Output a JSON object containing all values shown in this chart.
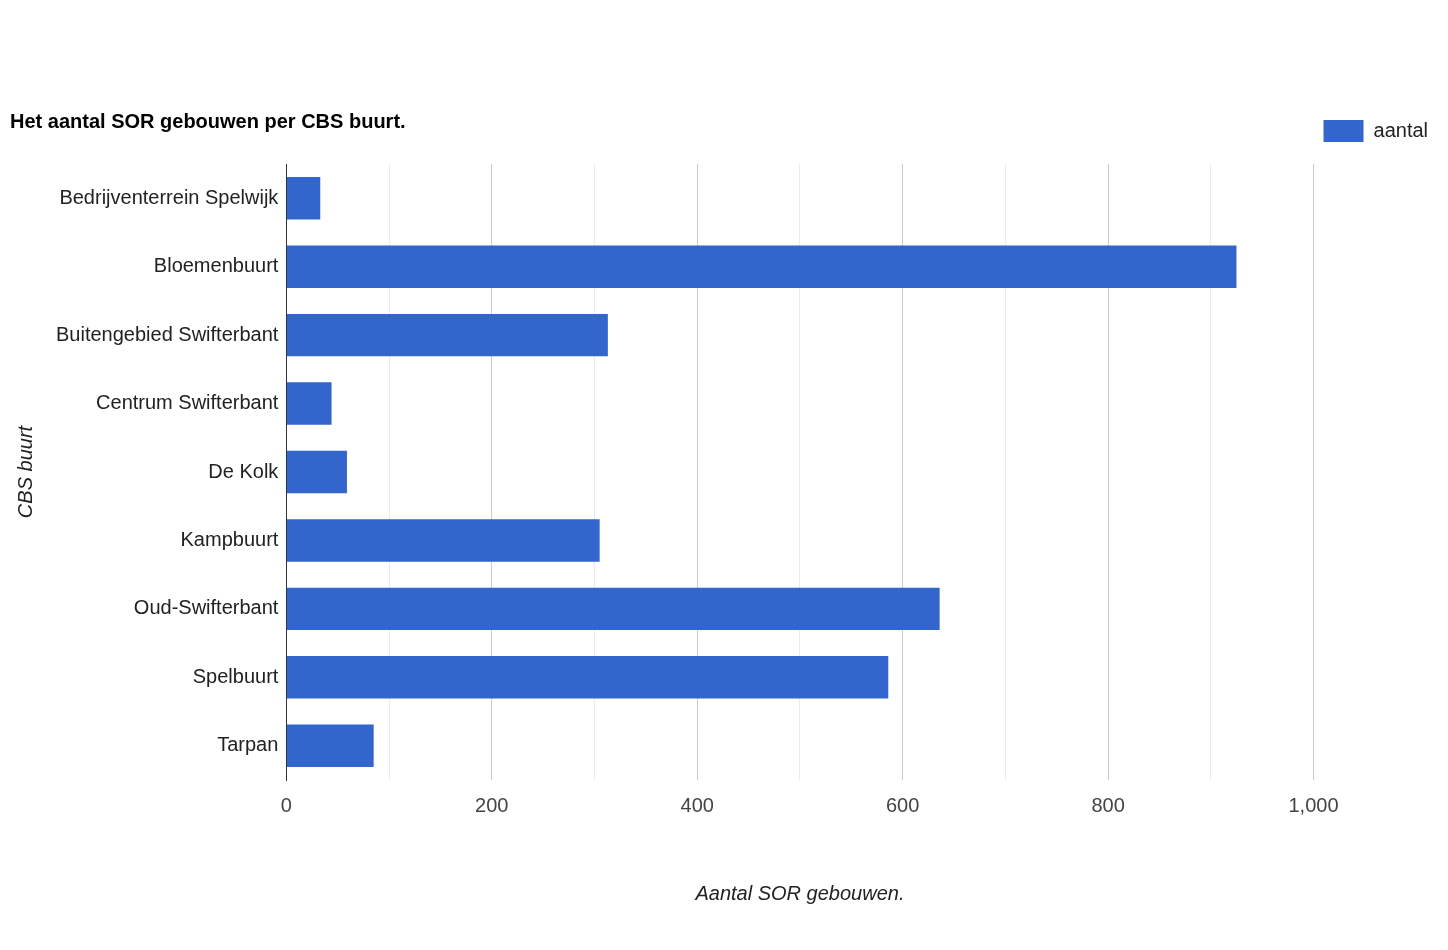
{
  "chart_data": {
    "type": "bar",
    "orientation": "horizontal",
    "title": "Het aantal SOR gebouwen per CBS buurt.",
    "xlabel": "Aantal SOR gebouwen.",
    "ylabel": "CBS buurt",
    "categories": [
      "Bedrijventerrein Spelwijk",
      "Bloemenbuurt",
      "Buitengebied Swifterbant",
      "Centrum Swifterbant",
      "De Kolk",
      "Kampbuurt",
      "Oud-Swifterbant",
      "Spelbuurt",
      "Tarpan"
    ],
    "series": [
      {
        "name": "aantal",
        "color": "#3366cc",
        "values": [
          33,
          925,
          313,
          44,
          59,
          305,
          636,
          586,
          85
        ]
      }
    ],
    "xlim": [
      0,
      1000
    ],
    "xticks": [
      0,
      {
        "value": 100,
        "label": null
      },
      200,
      {
        "value": 300,
        "label": null
      },
      400,
      {
        "value": 500,
        "label": null
      },
      600,
      {
        "value": 700,
        "label": null
      },
      800,
      {
        "value": 900,
        "label": null
      },
      {
        "value": 1000,
        "label": "1,000"
      }
    ],
    "grid": "x",
    "legend": "top right"
  }
}
